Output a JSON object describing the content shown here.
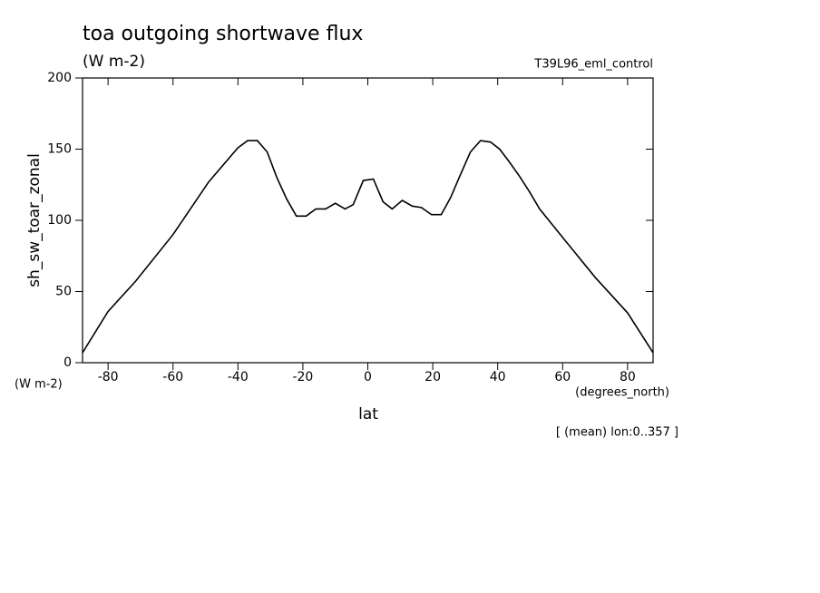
{
  "chart_data": {
    "type": "line",
    "title": "toa outgoing shortwave flux",
    "subtitle": "(W m-2)",
    "dataset": "T39L96_eml_control",
    "y_label": "sh_sw_toar_zonal",
    "y_units": "(W m-2)",
    "x_label": "lat",
    "x_units": "(degrees_north)",
    "note": "[ (mean) lon:0..357 ]",
    "color": "#000000",
    "xlim": [
      -87.86,
      87.86
    ],
    "ylim": [
      0,
      200
    ],
    "xticks": [
      -80,
      -60,
      -40,
      -20,
      0,
      20,
      40,
      60,
      80
    ],
    "yticks": [
      0,
      50,
      100,
      150,
      200
    ],
    "x": [
      -87.86,
      -80,
      -71.6,
      -60,
      -49,
      -40,
      -37,
      -34,
      -31,
      -28,
      -25,
      -22,
      -19,
      -16,
      -13,
      -10,
      -7,
      -4.5,
      -1.4,
      1.7,
      4.7,
      7.5,
      10.6,
      13.7,
      16.5,
      19.6,
      22.6,
      25.5,
      28.5,
      31.6,
      34.7,
      37.8,
      40.6,
      43.6,
      46.7,
      49.8,
      52.9,
      60,
      70,
      80,
      87.86
    ],
    "values": [
      7,
      36,
      57,
      90,
      127,
      151,
      156,
      156,
      148,
      130,
      115,
      103,
      103,
      108,
      108,
      112,
      108,
      111,
      128,
      129,
      113,
      108,
      114,
      110,
      109,
      104,
      104,
      116,
      132,
      148,
      156,
      155,
      150,
      141,
      131,
      120,
      108,
      88,
      60,
      35,
      7
    ]
  }
}
